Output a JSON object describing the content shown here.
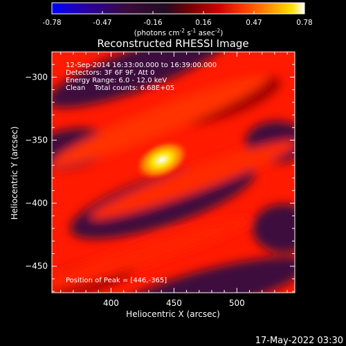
{
  "colorbar": {
    "ticks": [
      "-0.78",
      "-0.47",
      "-0.16",
      "0.16",
      "0.47",
      "0.78"
    ],
    "unit_label": "(photons cm",
    "unit_exp1": "-2",
    "unit_mid": " s",
    "unit_exp2": "-1",
    "unit_end": " asec",
    "unit_exp3": "-2",
    "unit_close": ")"
  },
  "title": "Reconstructed RHESSI Image",
  "info": {
    "time_range": "12-Sep-2014 16:33:00.000 to 16:39:00.000",
    "detectors": "Detectors: 3F 6F 9F, Att 0",
    "energy": "Energy Range: 6.0 - 12.0 keV",
    "clean": "Clean    Total counts: 6.68E+05",
    "peak": "Position of Peak = [446,-365]"
  },
  "axes": {
    "xlabel": "Heliocentric X (arcsec)",
    "ylabel": "Heliocentric Y (arcsec)",
    "x_ticks": [
      "400",
      "450",
      "500"
    ],
    "y_ticks": [
      "-300",
      "-350",
      "-400",
      "-450"
    ],
    "xlim": [
      353,
      546
    ],
    "ylim": [
      -471,
      -280
    ]
  },
  "footer_date": "17-May-2022 03:30",
  "colors": {
    "cmap_stops": [
      "#0000ff",
      "#2a00a0",
      "#3a0a3a",
      "#220c22",
      "#7a0000",
      "#d00000",
      "#ff3c00",
      "#ff9000",
      "#ffe000",
      "#ffffff"
    ]
  }
}
